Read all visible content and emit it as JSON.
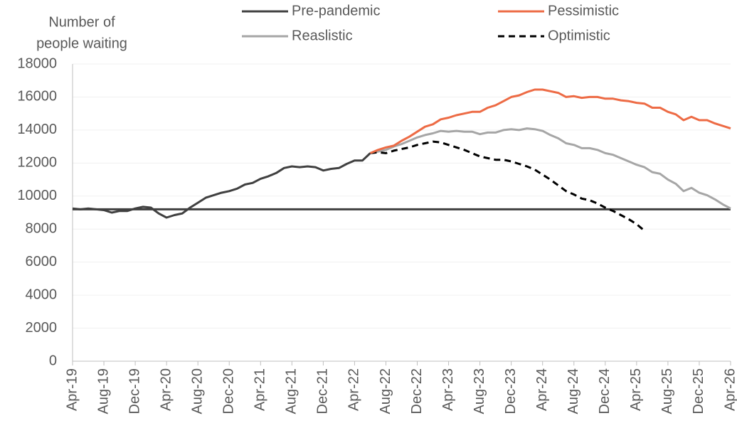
{
  "chart_data": {
    "type": "line",
    "ylabel": [
      "Number of",
      "people waiting"
    ],
    "categories": [
      "Apr-19",
      null,
      null,
      null,
      "Aug-19",
      null,
      null,
      null,
      "Dec-19",
      null,
      null,
      null,
      "Apr-20",
      null,
      null,
      null,
      "Aug-20",
      null,
      null,
      null,
      "Dec-20",
      null,
      null,
      null,
      "Apr-21",
      null,
      null,
      null,
      "Aug-21",
      null,
      null,
      null,
      "Dec-21",
      null,
      null,
      null,
      "Apr-22",
      null,
      null,
      null,
      "Aug-22",
      null,
      null,
      null,
      "Dec-22",
      null,
      null,
      null,
      "Apr-23",
      null,
      null,
      null,
      "Aug-23",
      null,
      null,
      null,
      "Dec-23",
      null,
      null,
      null,
      "Apr-24",
      null,
      null,
      null,
      "Aug-24",
      null,
      null,
      null,
      "Dec-24",
      null,
      null,
      null,
      "Apr-25",
      null,
      null,
      null,
      "Aug-25",
      null,
      null,
      null,
      "Dec-25",
      null,
      null,
      null,
      "Apr-26"
    ],
    "reference_line": {
      "name": "Pre-pandemic",
      "value": 9200,
      "color": "#404040"
    },
    "series": [
      {
        "name": null,
        "color": "#404040",
        "dash": false,
        "values": [
          9250,
          9200,
          9250,
          9200,
          9150,
          9000,
          9100,
          9100,
          9250,
          9350,
          9300,
          8950,
          8700,
          8850,
          8950,
          9300,
          9600,
          9900,
          10050,
          10200,
          10300,
          10450,
          10700,
          10800,
          11050,
          11200,
          11400,
          11700,
          11800,
          11750,
          11800,
          11750,
          11550,
          11650,
          11700,
          11950,
          12150,
          12150,
          12600,
          null,
          null,
          null,
          null,
          null,
          null,
          null,
          null,
          null,
          null,
          null,
          null,
          null,
          null,
          null,
          null,
          null,
          null,
          null,
          null,
          null,
          null,
          null,
          null,
          null,
          null,
          null,
          null,
          null,
          null,
          null,
          null,
          null,
          null,
          null,
          null,
          null,
          null,
          null,
          null,
          null,
          null,
          null,
          null,
          null,
          null
        ]
      },
      {
        "name": "Pessimistic",
        "color": "#ed6b45",
        "dash": false,
        "values": [
          null,
          null,
          null,
          null,
          null,
          null,
          null,
          null,
          null,
          null,
          null,
          null,
          null,
          null,
          null,
          null,
          null,
          null,
          null,
          null,
          null,
          null,
          null,
          null,
          null,
          null,
          null,
          null,
          null,
          null,
          null,
          null,
          null,
          null,
          null,
          null,
          null,
          null,
          12600,
          12800,
          12950,
          13050,
          13350,
          13600,
          13900,
          14200,
          14350,
          14650,
          14750,
          14900,
          15000,
          15100,
          15100,
          15350,
          15500,
          15750,
          16000,
          16100,
          16300,
          16450,
          16450,
          16350,
          16250,
          16000,
          16050,
          15950,
          16000,
          16000,
          15900,
          15900,
          15800,
          15750,
          15650,
          15600,
          15350,
          15350,
          15100,
          14950,
          14600,
          14800,
          14600,
          14600,
          14400,
          14250,
          14100
        ]
      },
      {
        "name": "Reaslistic",
        "color": "#a6a6a6",
        "dash": false,
        "values": [
          null,
          null,
          null,
          null,
          null,
          null,
          null,
          null,
          null,
          null,
          null,
          null,
          null,
          null,
          null,
          null,
          null,
          null,
          null,
          null,
          null,
          null,
          null,
          null,
          null,
          null,
          null,
          null,
          null,
          null,
          null,
          null,
          null,
          null,
          null,
          null,
          null,
          null,
          12600,
          12700,
          12800,
          13000,
          13150,
          13350,
          13550,
          13700,
          13800,
          13950,
          13900,
          13950,
          13900,
          13900,
          13750,
          13850,
          13850,
          14000,
          14050,
          14000,
          14100,
          14050,
          13950,
          13700,
          13500,
          13200,
          13100,
          12900,
          12900,
          12800,
          12600,
          12500,
          12300,
          12100,
          11900,
          11750,
          11450,
          11350,
          11000,
          10750,
          10300,
          10500,
          10200,
          10050,
          9800,
          9500,
          9250
        ]
      },
      {
        "name": "Optimistic",
        "color": "#000000",
        "dash": true,
        "values": [
          null,
          null,
          null,
          null,
          null,
          null,
          null,
          null,
          null,
          null,
          null,
          null,
          null,
          null,
          null,
          null,
          null,
          null,
          null,
          null,
          null,
          null,
          null,
          null,
          null,
          null,
          null,
          null,
          null,
          null,
          null,
          null,
          null,
          null,
          null,
          null,
          null,
          null,
          12600,
          12650,
          12600,
          12750,
          12850,
          12950,
          13100,
          13200,
          13300,
          13250,
          13100,
          12950,
          12800,
          12600,
          12400,
          12300,
          12200,
          12200,
          12100,
          11950,
          11800,
          11600,
          11300,
          11000,
          10650,
          10300,
          10100,
          9850,
          9750,
          9550,
          9300,
          9100,
          8850,
          8600,
          8300,
          7900,
          null,
          null,
          null,
          null,
          null,
          null,
          null,
          null,
          null,
          null,
          null
        ]
      }
    ],
    "legend_order": [
      "reference",
      1,
      2,
      3
    ],
    "ylim": [
      0,
      18000
    ],
    "yticks": [
      0,
      2000,
      4000,
      6000,
      8000,
      10000,
      12000,
      14000,
      16000,
      18000
    ],
    "grid": true
  }
}
